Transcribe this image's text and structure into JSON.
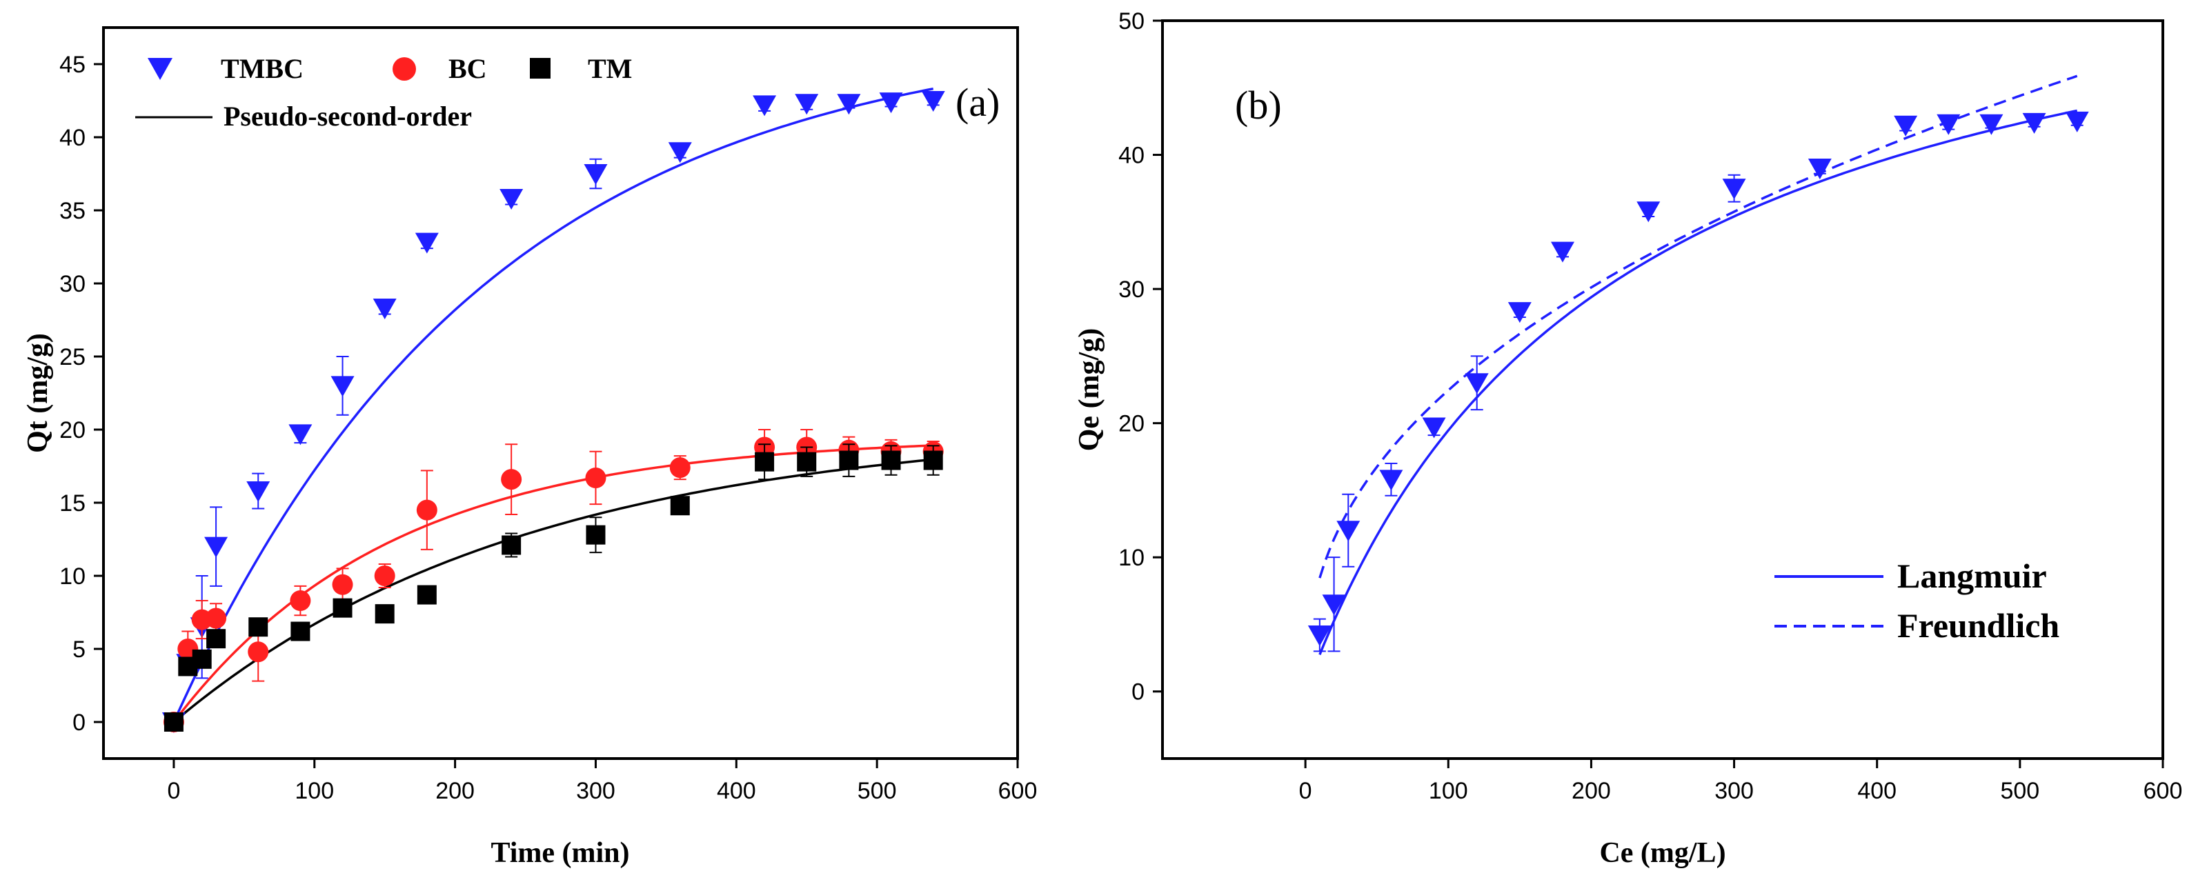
{
  "chart_data": [
    {
      "type": "scatter",
      "panel_label": "(a)",
      "xlabel": "Time (min)",
      "ylabel": "Qt (mg/g)",
      "xlim": [
        -50,
        600
      ],
      "ylim": [
        -2.5,
        47.5
      ],
      "xticks": [
        0,
        100,
        200,
        300,
        400,
        500,
        600
      ],
      "yticks": [
        0,
        5,
        10,
        15,
        20,
        25,
        30,
        35,
        40,
        45
      ],
      "legend_position": "top-left",
      "fit_label": "Pseudo-second-order",
      "series": [
        {
          "name": "TMBC",
          "color": "#1f1fff",
          "marker": "triangle-down",
          "x": [
            0,
            10,
            20,
            30,
            60,
            90,
            120,
            150,
            180,
            240,
            300,
            360,
            420,
            450,
            480,
            510,
            540
          ],
          "y": [
            0,
            4,
            6.5,
            12,
            15.8,
            19.7,
            23,
            28.3,
            32.8,
            35.8,
            37.5,
            39,
            42.2,
            42.3,
            42.3,
            42.4,
            42.5
          ],
          "err": [
            0,
            0.8,
            3.5,
            2.7,
            1.2,
            0.6,
            2.0,
            0.4,
            0.4,
            0.4,
            1.0,
            0.4,
            0.4,
            0.4,
            0.3,
            0.3,
            0.3
          ]
        },
        {
          "name": "BC",
          "color": "#ff2020",
          "marker": "circle",
          "x": [
            0,
            10,
            20,
            30,
            60,
            90,
            120,
            150,
            180,
            240,
            300,
            360,
            420,
            450,
            480,
            510,
            540
          ],
          "y": [
            0,
            5,
            7,
            7.1,
            4.8,
            8.3,
            9.4,
            10,
            14.5,
            16.6,
            16.7,
            17.4,
            18.8,
            18.8,
            18.6,
            18.5,
            18.5
          ],
          "err": [
            0,
            1.2,
            1.3,
            1.0,
            2.0,
            1.0,
            1.1,
            0.8,
            2.7,
            2.4,
            1.8,
            0.8,
            1.2,
            1.2,
            0.9,
            0.8,
            0.7
          ]
        },
        {
          "name": "TM",
          "color": "#000000",
          "marker": "square",
          "x": [
            0,
            10,
            20,
            30,
            60,
            90,
            120,
            150,
            180,
            240,
            300,
            360,
            420,
            450,
            480,
            510,
            540
          ],
          "y": [
            0,
            3.8,
            4.3,
            5.7,
            6.5,
            6.2,
            7.8,
            7.4,
            8.7,
            12.1,
            12.8,
            14.8,
            17.8,
            17.8,
            17.9,
            17.9,
            17.9
          ],
          "err": [
            0,
            0.4,
            0.5,
            0.5,
            0.4,
            0.6,
            0.5,
            0.3,
            0.3,
            0.8,
            1.2,
            0.4,
            1.2,
            1.0,
            1.1,
            1.0,
            1.0
          ]
        }
      ],
      "fits": [
        {
          "series": "TMBC",
          "color": "#1f1fff",
          "form": "pseudo-first-order-shape",
          "qmax": 47.5,
          "k": 0.0045
        },
        {
          "series": "BC",
          "color": "#ff2020",
          "form": "pseudo-first-order-shape",
          "qmax": 19.5,
          "k": 0.0065
        },
        {
          "series": "TM",
          "color": "#000000",
          "form": "pseudo-first-order-shape",
          "qmax": 20.3,
          "k": 0.004
        }
      ]
    },
    {
      "type": "scatter",
      "panel_label": "(b)",
      "xlabel": "Ce (mg/L)",
      "ylabel": "Qe (mg/g)",
      "xlim": [
        -100,
        600
      ],
      "ylim": [
        -5,
        50
      ],
      "xticks": [
        0,
        100,
        200,
        300,
        400,
        500,
        600
      ],
      "yticks": [
        0,
        10,
        20,
        30,
        40,
        50
      ],
      "legend_position": "bottom-right",
      "series": [
        {
          "name": "TMBC",
          "color": "#1f1fff",
          "marker": "triangle-down",
          "x": [
            10,
            20,
            30,
            60,
            90,
            120,
            150,
            180,
            240,
            300,
            360,
            420,
            450,
            480,
            510,
            540
          ],
          "y": [
            4.2,
            6.5,
            12,
            15.8,
            19.7,
            23,
            28.3,
            32.8,
            35.8,
            37.5,
            39,
            42.2,
            42.3,
            42.3,
            42.4,
            42.5
          ],
          "err": [
            1.2,
            3.5,
            2.7,
            1.2,
            0.6,
            2.0,
            0.4,
            0.4,
            0.4,
            1.0,
            0.4,
            0.4,
            0.4,
            0.3,
            0.3,
            0.3
          ]
        }
      ],
      "fits": [
        {
          "name": "Langmuir",
          "color": "#1f1fff",
          "dash": false,
          "form": "langmuir",
          "qm": 60,
          "KL": 0.0048,
          "xrange": [
            10,
            540
          ]
        },
        {
          "name": "Freundlich",
          "color": "#1f1fff",
          "dash": true,
          "form": "freundlich",
          "KF": 3.19,
          "n": 2.36,
          "xrange": [
            10,
            540
          ]
        }
      ]
    }
  ]
}
